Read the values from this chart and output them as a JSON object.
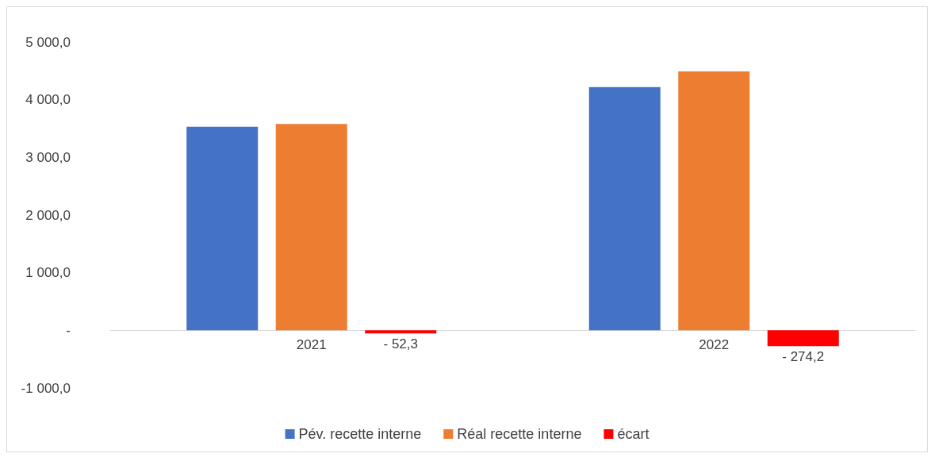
{
  "chart_data": {
    "type": "bar",
    "categories": [
      "2021",
      "2022"
    ],
    "series": [
      {
        "name": "Pév. recette interne",
        "color": "#4472c4",
        "values": [
          3530,
          4220
        ]
      },
      {
        "name": "Réal recette interne",
        "color": "#ed7d31",
        "values": [
          3580,
          4490
        ]
      },
      {
        "name": "écart",
        "color": "#ff0000",
        "values": [
          -52.3,
          -274.2
        ],
        "value_labels": [
          "- 52,3",
          "- 274,2"
        ]
      }
    ],
    "ylim": [
      -1000,
      5000
    ],
    "yticks": [
      {
        "value": -1000,
        "label": "-1 000,0"
      },
      {
        "value": 0,
        "label": "-"
      },
      {
        "value": 1000,
        "label": "1 000,0"
      },
      {
        "value": 2000,
        "label": "2 000,0"
      },
      {
        "value": 3000,
        "label": "3 000,0"
      },
      {
        "value": 4000,
        "label": "4 000,0"
      },
      {
        "value": 5000,
        "label": "5 000,0"
      }
    ],
    "grid": false,
    "legend": "bottom"
  }
}
